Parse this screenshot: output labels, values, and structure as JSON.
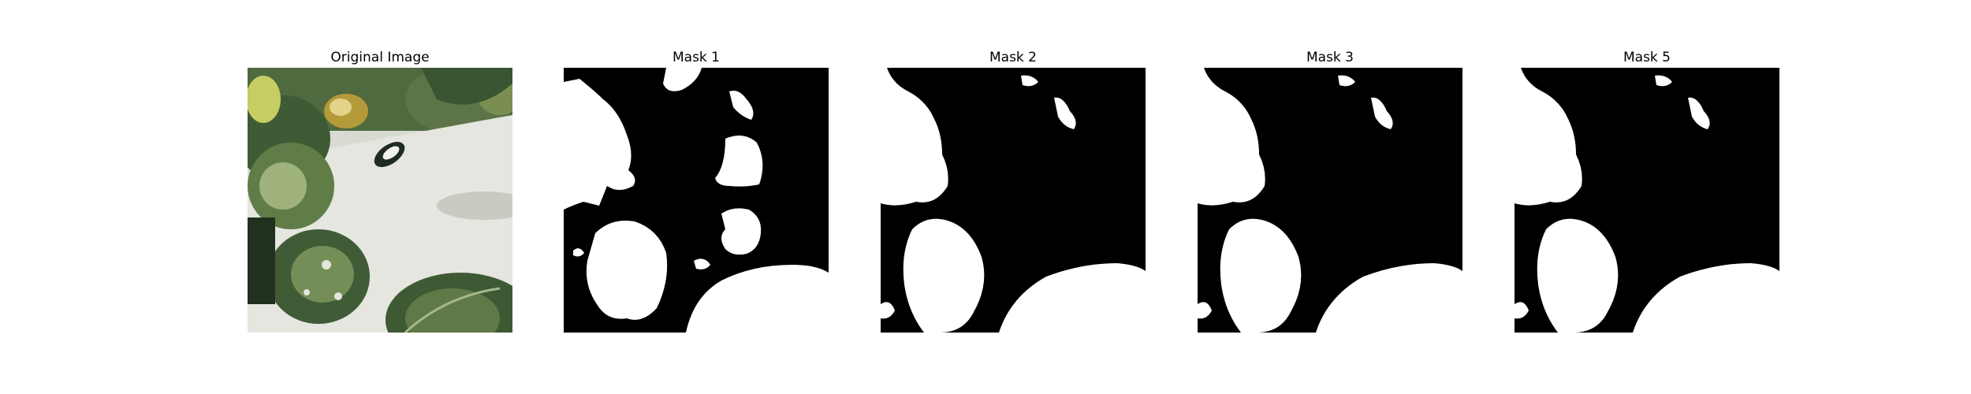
{
  "figure": {
    "panels": [
      {
        "title": "Original Image",
        "kind": "photo"
      },
      {
        "title": "Mask 1",
        "kind": "mask"
      },
      {
        "title": "Mask 2",
        "kind": "mask"
      },
      {
        "title": "Mask 3",
        "kind": "mask"
      },
      {
        "title": "Mask 5",
        "kind": "mask"
      }
    ],
    "colors": {
      "mask_background": "#000000",
      "mask_foreground": "#ffffff",
      "leaf_dark": "#3e5a36",
      "leaf_mid": "#6f8a55",
      "leaf_light": "#b9c79a",
      "pot_white": "#dcdfd6"
    }
  }
}
